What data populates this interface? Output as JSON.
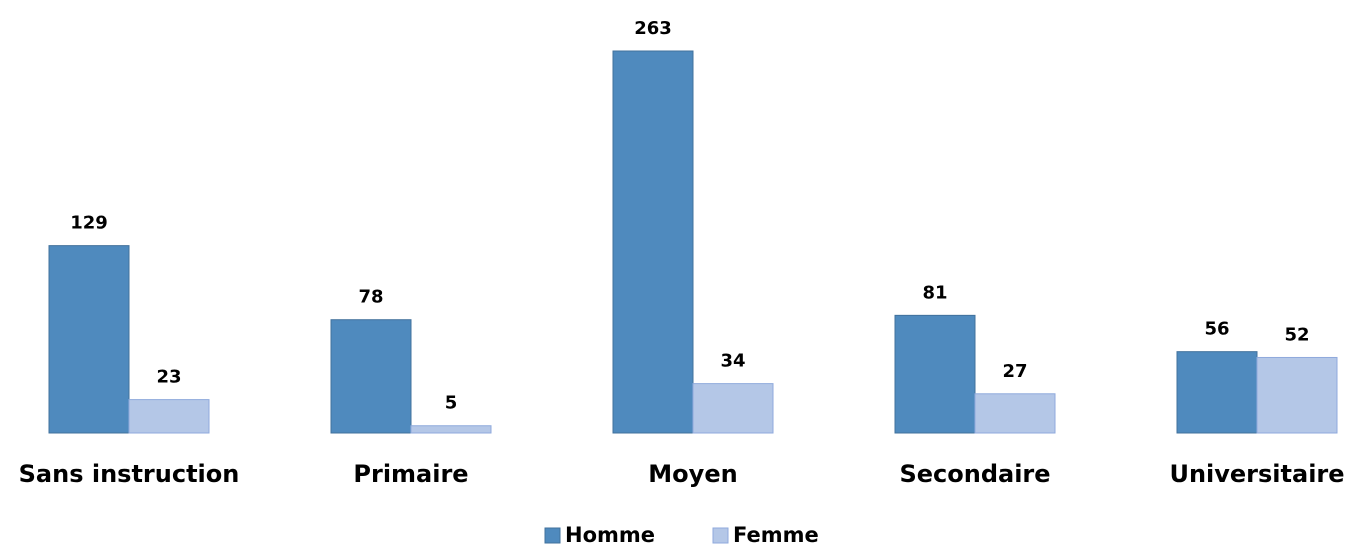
{
  "chart_data": {
    "type": "bar",
    "categories": [
      "Sans instruction",
      "Primaire",
      "Moyen",
      "Secondaire",
      "Universitaire"
    ],
    "series": [
      {
        "name": "Homme",
        "color": "#4f8abe",
        "values": [
          129,
          78,
          263,
          81,
          56
        ]
      },
      {
        "name": "Femme",
        "color": "#b4c7e7",
        "values": [
          23,
          5,
          34,
          27,
          52
        ]
      }
    ],
    "legend": "bottom"
  }
}
